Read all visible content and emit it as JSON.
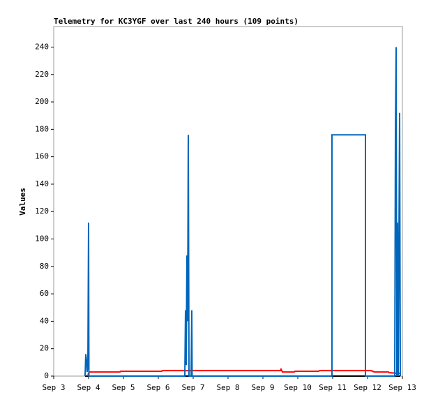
{
  "chart_data": {
    "type": "line",
    "title": "Telemetry for KC3YGF over last 240 hours (109 points)",
    "y_label": "Values",
    "xlim": [
      3,
      13
    ],
    "xticks": [
      {
        "value": 3,
        "label": "Sep 3"
      },
      {
        "value": 4,
        "label": "Sep 4"
      },
      {
        "value": 5,
        "label": "Sep 5"
      },
      {
        "value": 6,
        "label": "Sep 6"
      },
      {
        "value": 7,
        "label": "Sep 7"
      },
      {
        "value": 8,
        "label": "Sep 8"
      },
      {
        "value": 9,
        "label": "Sep 9"
      },
      {
        "value": 10,
        "label": "Sep 10"
      },
      {
        "value": 11,
        "label": "Sep 11"
      },
      {
        "value": 12,
        "label": "Sep 12"
      },
      {
        "value": 13,
        "label": "Sep 13"
      }
    ],
    "ylim": [
      0,
      255
    ],
    "yticks": [
      0,
      20,
      40,
      60,
      80,
      100,
      120,
      140,
      160,
      180,
      200,
      220,
      240
    ],
    "series": [
      {
        "color": "#000000",
        "x": [
          3.9,
          12.94
        ],
        "values": [
          0,
          0
        ]
      },
      {
        "color": "#ff0000",
        "x": [
          3.98,
          4.02,
          4.9,
          4.92,
          6.1,
          6.12,
          9.5,
          9.52,
          9.56,
          9.9,
          9.92,
          10.6,
          10.62,
          12.1,
          12.2,
          12.6,
          12.62,
          12.94
        ],
        "values": [
          1,
          3,
          3,
          3.5,
          3.5,
          4,
          4,
          5,
          3,
          3,
          3.5,
          3.5,
          4,
          4,
          3,
          3,
          2.5,
          2
        ]
      },
      {
        "color": "#0066bb",
        "x": [
          3.9,
          3.92,
          3.94,
          3.96,
          3.98,
          4.0,
          4.01,
          6.76,
          6.78,
          6.8,
          6.82,
          6.84,
          6.86,
          6.88,
          6.94,
          6.96,
          6.97,
          10.98,
          10.98,
          11.94,
          11.94,
          12.78,
          12.8,
          12.82,
          12.84,
          12.86,
          12.88,
          12.92,
          12.94
        ],
        "values": [
          0,
          16,
          12,
          3,
          8,
          112,
          0,
          0,
          48,
          8,
          88,
          40,
          176,
          0,
          0,
          48,
          0,
          0,
          176,
          176,
          0,
          0,
          176,
          240,
          0,
          112,
          0,
          192,
          0
        ]
      }
    ]
  }
}
